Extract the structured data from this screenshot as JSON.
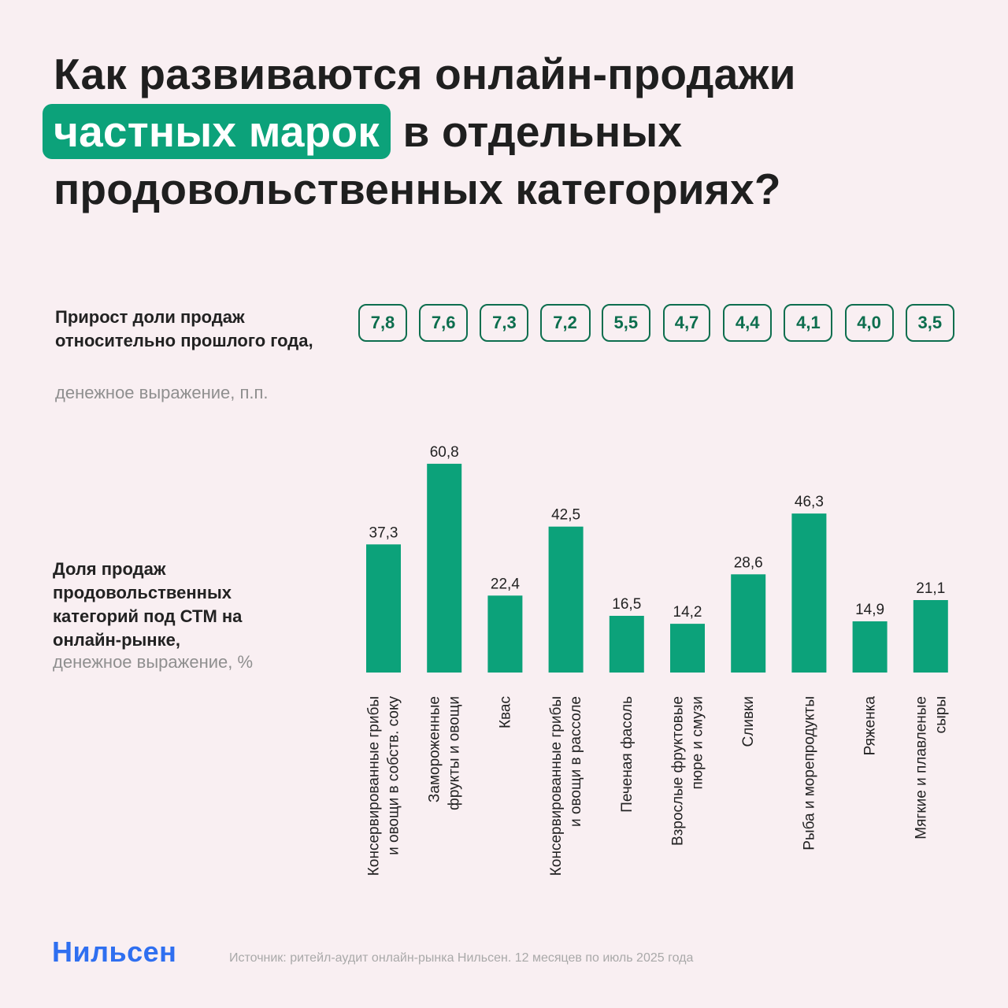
{
  "title": {
    "line1": "Как развиваются онлайн-продажи",
    "highlight": "частных марок",
    "line2_rest": "в отдельных",
    "line3": "продовольственных категориях?"
  },
  "growth_panel": {
    "label": "Прирост доли продаж относительно прошлого года,",
    "sublabel": "денежное выражение, п.п."
  },
  "share_panel": {
    "label": "Доля продаж продовольственных категорий под СТМ на онлайн-рынке,",
    "sublabel": "денежное выражение, %"
  },
  "footer": {
    "brand": "Нильсен",
    "source": "Источник: ритейл-аудит онлайн-рынка Нильсен. 12 месяцев по июль 2025 года"
  },
  "colors": {
    "bar": "#0ca27a",
    "highlight": "#0ca27a",
    "pill_border": "#0d6e4e",
    "background": "#f9eff2",
    "brand": "#2f6ff0"
  },
  "chart_data": {
    "type": "bar",
    "categories": [
      [
        "Консервированные грибы",
        "и овощи в собств. соку"
      ],
      [
        "Замороженные",
        "фрукты и овощи"
      ],
      [
        "Квас"
      ],
      [
        "Консервированные грибы",
        "и овощи в рассоле"
      ],
      [
        "Печеная фасоль"
      ],
      [
        "Взрослые фруктовые",
        "пюре и смузи"
      ],
      [
        "Сливки"
      ],
      [
        "Рыба и морепродукты"
      ],
      [
        "Ряженка"
      ],
      [
        "Мягкие и плавленые",
        "сыры"
      ]
    ],
    "values": [
      37.3,
      60.8,
      22.4,
      42.5,
      16.5,
      14.2,
      28.6,
      46.3,
      14.9,
      21.1
    ],
    "value_labels": [
      "37,3",
      "60,8",
      "22,4",
      "42,5",
      "16,5",
      "14,2",
      "28,6",
      "46,3",
      "14,9",
      "21,1"
    ],
    "growth_values": [
      7.8,
      7.6,
      7.3,
      7.2,
      5.5,
      4.7,
      4.4,
      4.1,
      4.0,
      3.5
    ],
    "growth_labels": [
      "7,8",
      "7,6",
      "7,3",
      "7,2",
      "5,5",
      "4,7",
      "4,4",
      "4,1",
      "4,0",
      "3,5"
    ],
    "ylim": [
      0,
      61
    ]
  }
}
